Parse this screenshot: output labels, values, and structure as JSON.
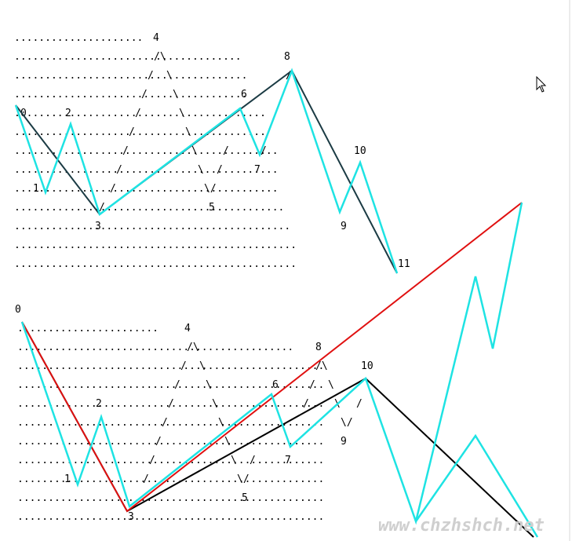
{
  "colors": {
    "cyan": "#1ee3e3",
    "dark_teal": "#1b3b44",
    "red": "#e01010",
    "black": "#000000"
  },
  "icons": {
    "cursor": "mouse-pointer-icon"
  },
  "top_diagram": {
    "point_labels": [
      "0",
      "1",
      "2",
      "3",
      "4",
      "5",
      "6",
      "7",
      "8",
      "9",
      "10",
      "11"
    ]
  },
  "bottom_diagram": {
    "point_labels": [
      "0",
      "1",
      "2",
      "3",
      "4",
      "5",
      "6",
      "7",
      "8",
      "9",
      "10"
    ]
  },
  "watermark": "www.chzhshch.net"
}
